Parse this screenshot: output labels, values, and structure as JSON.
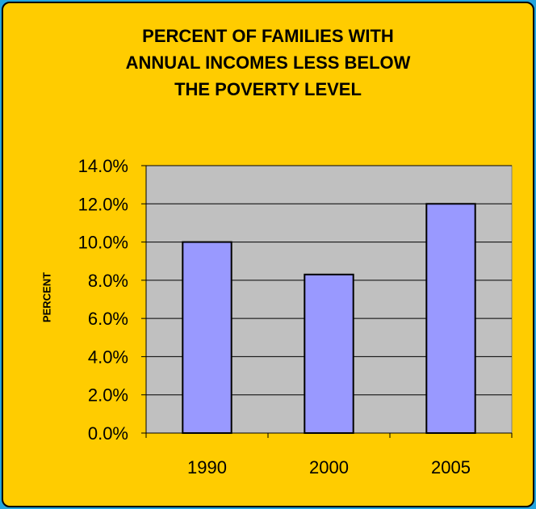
{
  "chart_data": {
    "type": "bar",
    "title_lines": [
      "PERCENT OF FAMILIES WITH",
      "ANNUAL INCOMES LESS BELOW",
      "THE POVERTY LEVEL"
    ],
    "xlabel": "",
    "ylabel": "PERCENT",
    "categories": [
      "1990",
      "2000",
      "2005"
    ],
    "values": [
      10.0,
      8.3,
      12.0
    ],
    "ylim": [
      0,
      14
    ],
    "yticks": [
      0,
      2,
      4,
      6,
      8,
      10,
      12,
      14
    ],
    "ytick_labels": [
      "0.0%",
      "2.0%",
      "4.0%",
      "6.0%",
      "8.0%",
      "10.0%",
      "12.0%",
      "14.0%"
    ],
    "grid": true,
    "legend": "none",
    "colors": {
      "bar": "#9999ff",
      "plot_bg": "#c0c0c0",
      "card_bg": "#ffcc00",
      "page_bg": "#25a4dd"
    }
  }
}
